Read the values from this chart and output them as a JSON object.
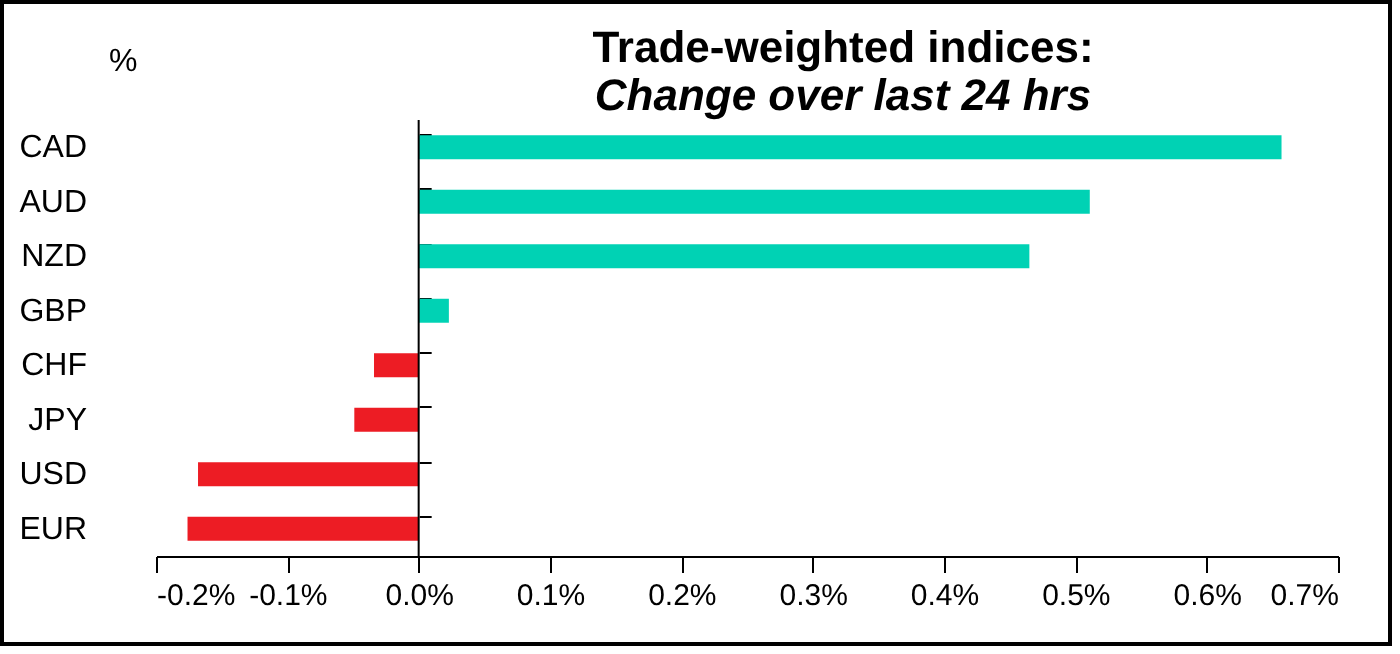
{
  "chart_data": {
    "type": "bar",
    "orientation": "horizontal",
    "title": "Trade-weighted indices:",
    "subtitle": "Change over last 24 hrs",
    "ylabel": "%",
    "categories": [
      "CAD",
      "AUD",
      "NZD",
      "GBP",
      "CHF",
      "JPY",
      "USD",
      "EUR"
    ],
    "values": [
      0.657,
      0.511,
      0.465,
      0.023,
      -0.034,
      -0.049,
      -0.168,
      -0.176
    ],
    "colors": [
      "#00d2b4",
      "#00d2b4",
      "#00d2b4",
      "#00d2b4",
      "#ed1c24",
      "#ed1c24",
      "#ed1c24",
      "#ed1c24"
    ],
    "xlim": [
      -0.2,
      0.7
    ],
    "xticks": [
      {
        "value": -0.2,
        "label": "-0.2%"
      },
      {
        "value": -0.1,
        "label": "-0.1%"
      },
      {
        "value": 0,
        "label": "0.0%"
      },
      {
        "value": 0.1,
        "label": "0.1%"
      },
      {
        "value": 0.2,
        "label": "0.2%"
      },
      {
        "value": 0.3,
        "label": "0.3%"
      },
      {
        "value": 0.4,
        "label": "0.4%"
      },
      {
        "value": 0.5,
        "label": "0.5%"
      },
      {
        "value": 0.6,
        "label": "0.6%"
      },
      {
        "value": 0.7,
        "label": "0.7%"
      }
    ],
    "ref_lines": [
      {
        "axis": "x",
        "value": 0,
        "color": "#000000"
      }
    ],
    "grid": false
  }
}
